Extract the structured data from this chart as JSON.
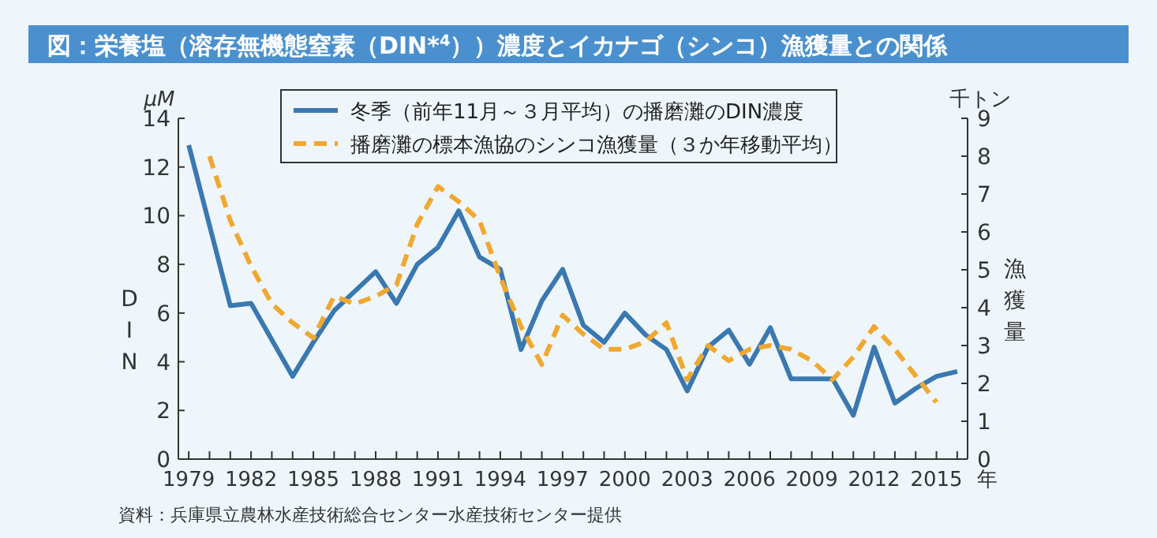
{
  "chart_data": {
    "type": "line",
    "title": "図：栄養塩（溶存無機態窒素（DIN*$^{4}$））濃度とイカナゴ（シンコ）漁獲量との関係",
    "xlabel": "年",
    "ylabel": "DIN",
    "y2label": "漁獲量",
    "annotations": [
      "μM",
      "千トン",
      "資料：兵庫県立農林水産技術総合センター水産技術センター提供"
    ],
    "x": [
      1979,
      1980,
      1981,
      1982,
      1983,
      1984,
      1985,
      1986,
      1987,
      1988,
      1989,
      1990,
      1991,
      1992,
      1993,
      1994,
      1995,
      1996,
      1997,
      1998,
      1999,
      2000,
      2001,
      2002,
      2003,
      2004,
      2005,
      2006,
      2007,
      2008,
      2009,
      2010,
      2011,
      2012,
      2013,
      2014,
      2015,
      2016
    ],
    "series": [
      {
        "name": "冬季（前年11月～３月平均）の播磨灘のDIN濃度",
        "color": "#3a78b0",
        "line_style": "solid",
        "values": [
          12.9,
          9.6,
          6.3,
          6.4,
          4.9,
          3.4,
          4.8,
          6.1,
          6.9,
          7.7,
          6.4,
          8.0,
          8.7,
          10.2,
          8.3,
          7.8,
          4.5,
          6.5,
          7.8,
          5.5,
          4.8,
          6.0,
          5.1,
          4.5,
          2.8,
          4.6,
          5.3,
          3.9,
          5.4,
          3.3,
          3.3,
          3.3,
          1.8,
          4.6,
          2.3,
          2.9,
          3.4,
          3.6
        ]
      },
      {
        "name": "播磨灘の標本漁協のシンコ漁獲量（３か年移動平均）",
        "color": "#f0a830",
        "line_style": "dashed",
        "axis": "y2",
        "values": [
          null,
          8.0,
          6.3,
          5.1,
          4.1,
          3.6,
          3.2,
          4.3,
          4.1,
          4.3,
          4.6,
          6.2,
          7.2,
          6.8,
          6.3,
          4.8,
          3.5,
          2.5,
          3.8,
          3.3,
          2.9,
          2.9,
          3.1,
          3.6,
          2.1,
          3.0,
          2.6,
          2.9,
          3.0,
          2.9,
          2.6,
          2.1,
          2.7,
          3.5,
          2.9,
          2.2,
          1.5,
          null
        ]
      }
    ],
    "xlim": [
      1978.5,
      2016.5
    ],
    "xticks": [
      1979,
      {
        "value": 1980,
        "label": null
      },
      {
        "value": 1981,
        "label": null
      },
      1982,
      {
        "value": 1983,
        "label": null
      },
      {
        "value": 1984,
        "label": null
      },
      1985,
      {
        "value": 1986,
        "label": null
      },
      {
        "value": 1987,
        "label": null
      },
      1988,
      {
        "value": 1989,
        "label": null
      },
      {
        "value": 1990,
        "label": null
      },
      1991,
      {
        "value": 1992,
        "label": null
      },
      {
        "value": 1993,
        "label": null
      },
      1994,
      {
        "value": 1995,
        "label": null
      },
      {
        "value": 1996,
        "label": null
      },
      1997,
      {
        "value": 1998,
        "label": null
      },
      {
        "value": 1999,
        "label": null
      },
      2000,
      {
        "value": 2001,
        "label": null
      },
      {
        "value": 2002,
        "label": null
      },
      2003,
      {
        "value": 2004,
        "label": null
      },
      {
        "value": 2005,
        "label": null
      },
      2006,
      {
        "value": 2007,
        "label": null
      },
      {
        "value": 2008,
        "label": null
      },
      2009,
      {
        "value": 2010,
        "label": null
      },
      {
        "value": 2011,
        "label": null
      },
      2012,
      {
        "value": 2013,
        "label": null
      },
      {
        "value": 2014,
        "label": null
      },
      2015,
      {
        "value": 2016,
        "label": null
      }
    ],
    "ylim": [
      0,
      14
    ],
    "yticks": [
      0,
      2,
      4,
      6,
      8,
      10,
      12,
      14
    ],
    "y2lim": [
      0,
      9
    ],
    "y2ticks": [
      0,
      1,
      2,
      3,
      4,
      5,
      6,
      7,
      8,
      9
    ],
    "legend": "top"
  }
}
